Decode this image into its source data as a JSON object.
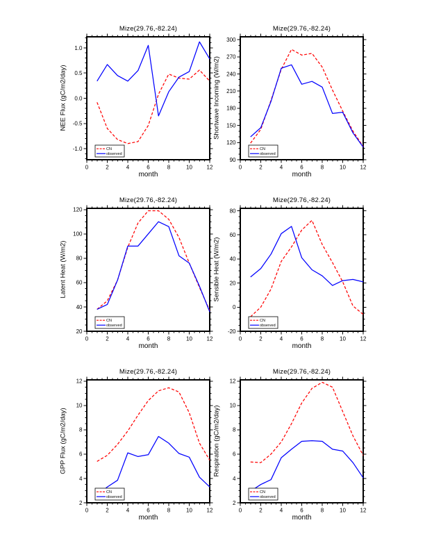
{
  "site": "Mize(29.76,-82.24)",
  "legend": {
    "entries": [
      "CN",
      "observed"
    ]
  },
  "colors": {
    "cn": "#ff0000",
    "observed": "#0000ff",
    "axis": "#000000"
  },
  "chart_data": [
    {
      "type": "line",
      "title": "Mize(29.76,-82.24)",
      "xlabel": "month",
      "ylabel": "NEE Flux (gC/m2/day)",
      "x": [
        1,
        2,
        3,
        4,
        5,
        6,
        7,
        8,
        9,
        10,
        11,
        12
      ],
      "xlim": [
        0,
        12
      ],
      "ylim": [
        -1.22,
        1.22
      ],
      "xticks": [
        0,
        2,
        4,
        6,
        8,
        10,
        12
      ],
      "xtick_labels": [
        "0",
        "2",
        "4",
        "6",
        "8",
        "10",
        "12"
      ],
      "x_minor_step": 0.5,
      "yticks": [
        -1.0,
        -0.5,
        0.0,
        0.5,
        1.0
      ],
      "ytick_labels": [
        "-1.0",
        "-0.5",
        "0.0",
        "0.5",
        "1.0"
      ],
      "y_minor_step": 0.1,
      "series": [
        {
          "name": "CN",
          "color": "#ff0000",
          "style": "dashed",
          "values": [
            -0.08,
            -0.6,
            -0.82,
            -0.9,
            -0.86,
            -0.54,
            0.08,
            0.48,
            0.4,
            0.38,
            0.56,
            0.34
          ]
        },
        {
          "name": "observed",
          "color": "#0000ff",
          "style": "solid",
          "values": [
            0.34,
            0.67,
            0.45,
            0.34,
            0.55,
            1.05,
            -0.35,
            0.13,
            0.42,
            0.53,
            1.12,
            0.78
          ]
        }
      ]
    },
    {
      "type": "line",
      "title": "Mize(29.76,-82.24)",
      "xlabel": "month",
      "ylabel": "Shortwave Incoming (W/m2)",
      "x": [
        1,
        2,
        3,
        4,
        5,
        6,
        7,
        8,
        9,
        10,
        11,
        12
      ],
      "xlim": [
        0,
        12
      ],
      "ylim": [
        90,
        305
      ],
      "xticks": [
        0,
        2,
        4,
        6,
        8,
        10,
        12
      ],
      "xtick_labels": [
        "0",
        "2",
        "4",
        "6",
        "8",
        "10",
        "12"
      ],
      "x_minor_step": 0.5,
      "yticks": [
        90,
        120,
        150,
        180,
        210,
        240,
        270,
        300
      ],
      "ytick_labels": [
        "90",
        "120",
        "150",
        "180",
        "210",
        "240",
        "270",
        "300"
      ],
      "y_minor_step": 10,
      "series": [
        {
          "name": "CN",
          "color": "#ff0000",
          "style": "dashed",
          "values": [
            119,
            143,
            194,
            248,
            283,
            273,
            276,
            252,
            212,
            175,
            140,
            113
          ]
        },
        {
          "name": "observed",
          "color": "#0000ff",
          "style": "solid",
          "values": [
            130,
            146,
            192,
            250,
            256,
            222,
            227,
            217,
            171,
            173,
            137,
            112
          ]
        }
      ]
    },
    {
      "type": "line",
      "title": "Mize(29.76,-82.24)",
      "xlabel": "month",
      "ylabel": "Latent Heat (W/m2)",
      "x": [
        1,
        2,
        3,
        4,
        5,
        6,
        7,
        8,
        9,
        10,
        11,
        12
      ],
      "xlim": [
        0,
        12
      ],
      "ylim": [
        20,
        121
      ],
      "xticks": [
        0,
        2,
        4,
        6,
        8,
        10,
        12
      ],
      "xtick_labels": [
        "0",
        "2",
        "4",
        "6",
        "8",
        "10",
        "12"
      ],
      "x_minor_step": 0.5,
      "yticks": [
        20,
        40,
        60,
        80,
        100,
        120
      ],
      "ytick_labels": [
        "20",
        "40",
        "60",
        "80",
        "100",
        "120"
      ],
      "y_minor_step": 5,
      "series": [
        {
          "name": "CN",
          "color": "#ff0000",
          "style": "dashed",
          "values": [
            38,
            45,
            62,
            89,
            109,
            119,
            119,
            112,
            97,
            76,
            56,
            37
          ]
        },
        {
          "name": "observed",
          "color": "#0000ff",
          "style": "solid",
          "values": [
            38,
            42,
            62,
            90,
            90,
            100,
            110,
            106,
            82,
            76,
            57,
            36
          ]
        }
      ]
    },
    {
      "type": "line",
      "title": "Mize(29.76,-82.24)",
      "xlabel": "month",
      "ylabel": "Sensible Heat (W/m2)",
      "x": [
        1,
        2,
        3,
        4,
        5,
        6,
        7,
        8,
        9,
        10,
        11,
        12
      ],
      "xlim": [
        0,
        12
      ],
      "ylim": [
        -20,
        82
      ],
      "xticks": [
        0,
        2,
        4,
        6,
        8,
        10,
        12
      ],
      "xtick_labels": [
        "0",
        "2",
        "4",
        "6",
        "8",
        "10",
        "12"
      ],
      "x_minor_step": 0.5,
      "yticks": [
        -20,
        0,
        20,
        40,
        60,
        80
      ],
      "ytick_labels": [
        "-20",
        "0",
        "20",
        "40",
        "60",
        "80"
      ],
      "y_minor_step": 5,
      "series": [
        {
          "name": "CN",
          "color": "#ff0000",
          "style": "dashed",
          "values": [
            -8,
            0,
            15,
            38,
            50,
            64,
            72,
            52,
            37,
            21,
            1,
            -6
          ]
        },
        {
          "name": "observed",
          "color": "#0000ff",
          "style": "solid",
          "values": [
            25,
            32,
            44,
            61,
            67,
            41,
            31,
            26,
            18,
            22,
            23,
            21
          ]
        }
      ]
    },
    {
      "type": "line",
      "title": "Mize(29.76,-82.24)",
      "xlabel": "month",
      "ylabel": "GPP Flux (gC/m2/day)",
      "x": [
        1,
        2,
        3,
        4,
        5,
        6,
        7,
        8,
        9,
        10,
        11,
        12
      ],
      "xlim": [
        0,
        12
      ],
      "ylim": [
        2,
        12.1
      ],
      "xticks": [
        0,
        2,
        4,
        6,
        8,
        10,
        12
      ],
      "xtick_labels": [
        "0",
        "2",
        "4",
        "6",
        "8",
        "10",
        "12"
      ],
      "x_minor_step": 0.5,
      "yticks": [
        2,
        4,
        6,
        8,
        10,
        12
      ],
      "ytick_labels": [
        "2",
        "4",
        "6",
        "8",
        "10",
        "12"
      ],
      "y_minor_step": 0.5,
      "series": [
        {
          "name": "CN",
          "color": "#ff0000",
          "style": "dashed",
          "values": [
            5.4,
            5.9,
            6.8,
            7.9,
            9.2,
            10.4,
            11.2,
            11.45,
            11.1,
            9.4,
            6.9,
            5.5
          ]
        },
        {
          "name": "observed",
          "color": "#0000ff",
          "style": "solid",
          "values": [
            2.6,
            3.3,
            3.85,
            6.1,
            5.8,
            5.95,
            7.45,
            6.9,
            6.05,
            5.75,
            4.1,
            3.3
          ]
        }
      ]
    },
    {
      "type": "line",
      "title": "Mize(29.76,-82.24)",
      "xlabel": "month",
      "ylabel": "Respiration (gC/m2/day)",
      "x": [
        1,
        2,
        3,
        4,
        5,
        6,
        7,
        8,
        9,
        10,
        11,
        12
      ],
      "xlim": [
        0,
        12
      ],
      "ylim": [
        2,
        12.1
      ],
      "xticks": [
        0,
        2,
        4,
        6,
        8,
        10,
        12
      ],
      "xtick_labels": [
        "0",
        "2",
        "4",
        "6",
        "8",
        "10",
        "12"
      ],
      "x_minor_step": 0.5,
      "yticks": [
        2,
        4,
        6,
        8,
        10,
        12
      ],
      "ytick_labels": [
        "2",
        "4",
        "6",
        "8",
        "10",
        "12"
      ],
      "y_minor_step": 0.5,
      "series": [
        {
          "name": "CN",
          "color": "#ff0000",
          "style": "dashed",
          "values": [
            5.35,
            5.3,
            6.0,
            7.0,
            8.5,
            10.2,
            11.4,
            11.9,
            11.5,
            9.5,
            7.5,
            5.9
          ]
        },
        {
          "name": "observed",
          "color": "#0000ff",
          "style": "solid",
          "values": [
            2.95,
            3.5,
            3.9,
            5.7,
            6.4,
            7.05,
            7.1,
            7.05,
            6.4,
            6.25,
            5.3,
            4.05
          ]
        }
      ]
    }
  ]
}
